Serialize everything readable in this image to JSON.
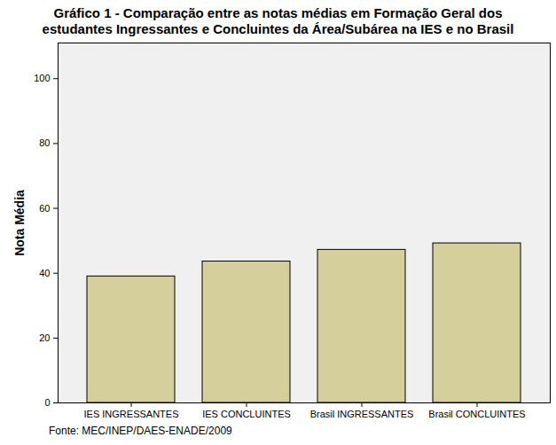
{
  "chart_data": {
    "type": "bar",
    "title": "Gráfico 1 - Comparação entre as notas médias em  Formação Geral dos\nestudantes Ingressantes e Concluintes  da Área/Subárea na IES e no Brasil",
    "y_label": "Nota Média",
    "caption": "Fonte: MEC/INEP/DAES-ENADE/2009",
    "categories": [
      "IES INGRESSANTES",
      "IES CONCLUINTES",
      "Brasil INGRESSANTES",
      "Brasil CONCLUINTES"
    ],
    "values": [
      39,
      43.6,
      47.2,
      49.2
    ],
    "color": "#d4cf9b",
    "ylim": [
      0,
      111
    ],
    "yticks": [
      0,
      20,
      40,
      60,
      80,
      100
    ],
    "grid": false
  }
}
